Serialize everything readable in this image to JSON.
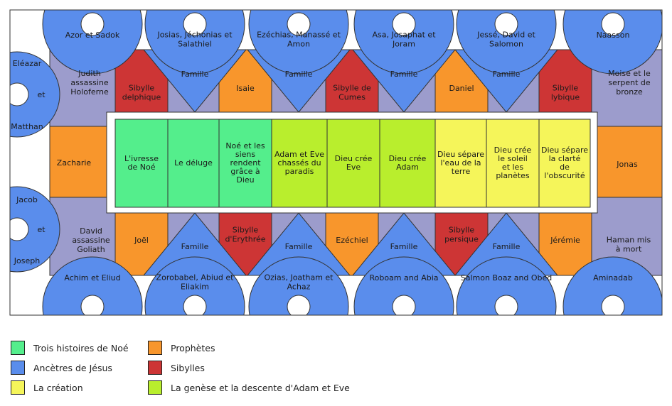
{
  "colors": {
    "noe": "#54ee8c",
    "ancetres": "#5a8dec",
    "creation": "#f5f55a",
    "genese": "#b9ee2d",
    "prophetes": "#f8962c",
    "sibylles": "#cd3535",
    "corners": "#9c9ccc",
    "frame": "#ffffff"
  },
  "lunettes_top": [
    "Azor et Sadok",
    "Josias, Jéchonias et Salathiel",
    "Ezéchias, Manassé et Amon",
    "Asa, Josaphat et Joram",
    "Jessé, David et Salomon",
    "Naasson"
  ],
  "lunettes_bottom": [
    "Achim et Eliud",
    "Zorobabel, Abiud et Eliakim",
    "Ozias, Joatham et Achaz",
    "Roboam and Abia",
    "Salmon Boaz and Obed",
    "Aminadab"
  ],
  "lunettes_left": [
    {
      "top": "Eléazar",
      "mid": "et",
      "bottom": "Matthan"
    },
    {
      "top": "Jacob",
      "mid": "et",
      "bottom": "Joseph"
    }
  ],
  "corners": {
    "top_left": "Judith assassine Holoferne",
    "top_right": "Moise et le serpent de bronze",
    "bottom_left": "David assassine Goliath",
    "bottom_right": "Haman mis à mort"
  },
  "prophets_side": {
    "left": "Zacharie",
    "right": "Jonas"
  },
  "seats_top": [
    "Sibylle delphique",
    "Isaie",
    "Sibylle de Cumes",
    "Daniel",
    "Sibylle lybique"
  ],
  "seats_bottom": [
    "Joël",
    "Sibylle d'Erythrée",
    "Ezéchiel",
    "Sibylle persique",
    "Jérémie"
  ],
  "famille_label": "Famille",
  "panels": [
    "L'ivresse de Noé",
    "Le déluge",
    "Noé et les siens rendent grâce à Dieu",
    "Adam et Eve chassés du paradis",
    "Dieu crée Eve",
    "Dieu crée Adam",
    "Dieu sépare l'eau de la terre",
    "Dieu crée le soleil et les planètes",
    "Dieu sépare la clarté de l'obscurité"
  ],
  "legend": [
    {
      "label": "Trois histoires de Noé",
      "color": "noe"
    },
    {
      "label": "Prophètes",
      "color": "prophetes"
    },
    {
      "label": "Ancètres de Jésus",
      "color": "ancetres"
    },
    {
      "label": "Sibylles",
      "color": "sibylles"
    },
    {
      "label": "La création",
      "color": "creation"
    },
    {
      "label": "La genèse et la descente d'Adam et Eve",
      "color": "genese"
    }
  ]
}
